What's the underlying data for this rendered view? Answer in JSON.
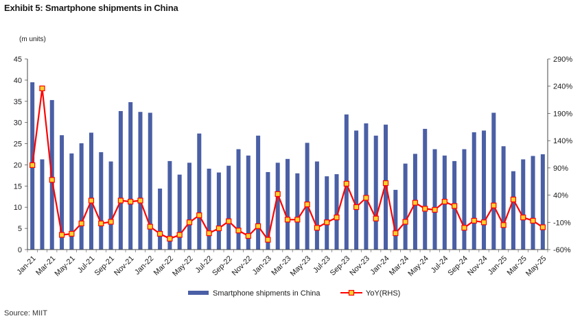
{
  "title": "Exhibit 5: Smartphone shipments in China",
  "source": "Source: MIIT",
  "chart_data": {
    "type": "bar",
    "unit_label": "(m units)",
    "categories": [
      "Jan-21",
      "Feb-21",
      "Mar-21",
      "Apr-21",
      "May-21",
      "Jun-21",
      "Jul-21",
      "Aug-21",
      "Sep-21",
      "Oct-21",
      "Nov-21",
      "Dec-21",
      "Jan-22",
      "Feb-22",
      "Mar-22",
      "Apr-22",
      "May-22",
      "Jun-22",
      "Jul-22",
      "Aug-22",
      "Sep-22",
      "Oct-22",
      "Nov-22",
      "Dec-22",
      "Jan-23",
      "Feb-23",
      "Mar-23",
      "Apr-23",
      "May-23",
      "Jun-23",
      "Jul-23",
      "Aug-23",
      "Sep-23",
      "Oct-23",
      "Nov-23",
      "Dec-23",
      "Jan-24",
      "Feb-24",
      "Mar-24",
      "Apr-24",
      "May-24",
      "Jun-24",
      "Jul-24",
      "Aug-24",
      "Sep-24",
      "Oct-24",
      "Nov-24",
      "Dec-24",
      "Jan-25",
      "Feb-25",
      "Mar-25",
      "Apr-25",
      "May-25"
    ],
    "x_tick_labels": [
      "Jan-21",
      "Mar-21",
      "May-21",
      "Jul-21",
      "Sep-21",
      "Nov-21",
      "Jan-22",
      "Mar-22",
      "May-22",
      "Jul-22",
      "Sep-22",
      "Nov-22",
      "Jan-23",
      "Mar-23",
      "May-23",
      "Jul-23",
      "Sep-23",
      "Nov-23",
      "Jan-24",
      "Mar-24",
      "May-24",
      "Jul-24",
      "Sep-24",
      "Nov-24",
      "Jan-25",
      "Mar-25",
      "May-25"
    ],
    "series": [
      {
        "name": "Smartphone shipments in China",
        "type": "bar",
        "axis": "left",
        "color": "#4a5fa5",
        "values": [
          39.5,
          21.3,
          35.3,
          27.0,
          22.7,
          25.1,
          27.6,
          23.0,
          20.8,
          32.7,
          34.8,
          32.5,
          32.3,
          14.4,
          20.9,
          17.7,
          20.5,
          27.4,
          19.1,
          18.2,
          19.8,
          23.7,
          22.2,
          26.9,
          18.3,
          20.5,
          21.4,
          18.0,
          25.2,
          20.8,
          17.3,
          17.8,
          31.9,
          28.1,
          29.8,
          26.9,
          29.5,
          14.1,
          20.3,
          22.6,
          28.5,
          23.7,
          22.2,
          20.9,
          23.7,
          27.7,
          28.1,
          32.3,
          24.4,
          18.5,
          21.3,
          22.1,
          22.5
        ]
      },
      {
        "name": "YoY(RHS)",
        "type": "line",
        "axis": "right",
        "color": "#ff0000",
        "marker_color": "#f5d232",
        "values": [
          95,
          236,
          68,
          -33,
          -31,
          -12,
          30,
          -12,
          -9,
          30,
          28,
          30,
          -18,
          -31,
          -40,
          -33,
          -10,
          3,
          -30,
          -21,
          -8,
          -25,
          -35,
          -17,
          -42,
          42,
          -5,
          -5,
          23,
          -20,
          -10,
          -1,
          61,
          18,
          35,
          -3,
          62,
          -30,
          -9,
          26,
          15,
          13,
          28,
          20,
          -20,
          -7,
          -10,
          21,
          -15,
          32,
          -1,
          -7,
          -19
        ]
      }
    ],
    "y_left": {
      "min": 0,
      "max": 45,
      "step": 5,
      "tick_labels": [
        "0",
        "5",
        "10",
        "15",
        "20",
        "25",
        "30",
        "35",
        "40",
        "45"
      ]
    },
    "y_right": {
      "min": -60,
      "max": 290,
      "step": 50,
      "tick_labels": [
        "-60%",
        "-10%",
        "40%",
        "90%",
        "140%",
        "190%",
        "240%",
        "290%"
      ]
    },
    "grid": false,
    "legend_position": "bottom-center"
  }
}
